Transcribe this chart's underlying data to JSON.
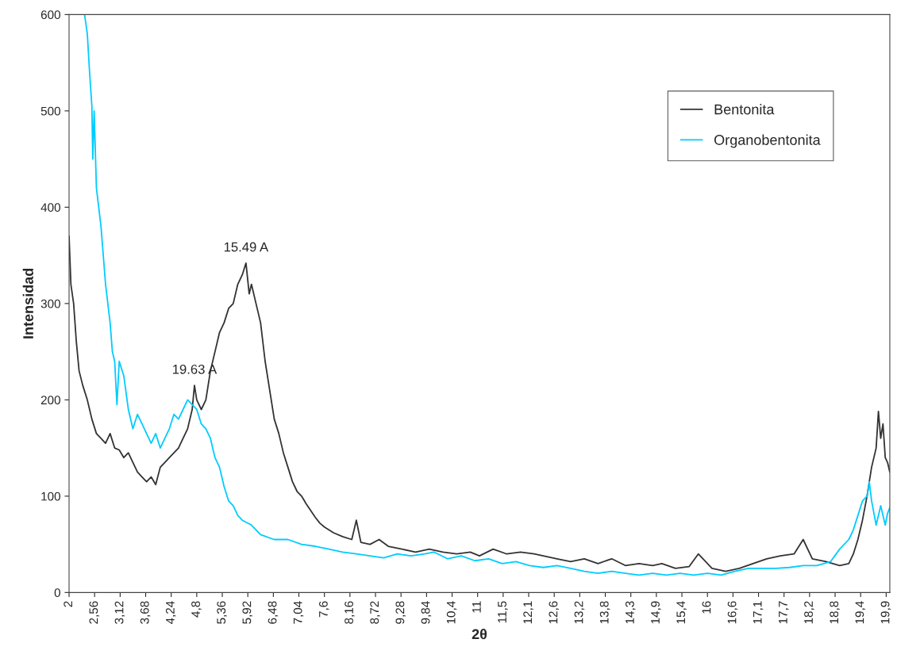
{
  "chart_data": {
    "type": "line",
    "xlabel": "2θ",
    "ylabel": "Intensidad",
    "xlim": [
      2,
      20
    ],
    "ylim": [
      0,
      600
    ],
    "yticks": [
      0,
      100,
      200,
      300,
      400,
      500,
      600
    ],
    "xticks": [
      2,
      {
        "value": 2.56,
        "label": "2,56"
      },
      {
        "value": 3.12,
        "label": "3,12"
      },
      {
        "value": 3.68,
        "label": "3,68"
      },
      {
        "value": 4.24,
        "label": "4,24"
      },
      {
        "value": 4.8,
        "label": "4,8"
      },
      {
        "value": 5.36,
        "label": "5,36"
      },
      {
        "value": 5.92,
        "label": "5,92"
      },
      {
        "value": 6.48,
        "label": "6,48"
      },
      {
        "value": 7.04,
        "label": "7,04"
      },
      {
        "value": 7.6,
        "label": "7,6"
      },
      {
        "value": 8.16,
        "label": "8,16"
      },
      {
        "value": 8.72,
        "label": "8,72"
      },
      {
        "value": 9.28,
        "label": "9,28"
      },
      {
        "value": 9.84,
        "label": "9,84"
      },
      {
        "value": 10.4,
        "label": "10,4"
      },
      {
        "value": 10.96,
        "label": "11"
      },
      {
        "value": 11.52,
        "label": "11,5"
      },
      {
        "value": 12.08,
        "label": "12,1"
      },
      {
        "value": 12.64,
        "label": "12,6"
      },
      {
        "value": 13.2,
        "label": "13,2"
      },
      {
        "value": 13.76,
        "label": "13,8"
      },
      {
        "value": 14.32,
        "label": "14,3"
      },
      {
        "value": 14.88,
        "label": "14,9"
      },
      {
        "value": 15.44,
        "label": "15,4"
      },
      {
        "value": 16.0,
        "label": "16"
      },
      {
        "value": 16.56,
        "label": "16,6"
      },
      {
        "value": 17.12,
        "label": "17,1"
      },
      {
        "value": 17.68,
        "label": "17,7"
      },
      {
        "value": 18.24,
        "label": "18,2"
      },
      {
        "value": 18.8,
        "label": "18,8"
      },
      {
        "value": 19.36,
        "label": "19,4"
      },
      {
        "value": 19.92,
        "label": "19,9"
      }
    ],
    "grid": false,
    "legend": "top right",
    "marker": "none",
    "line_style": "solid",
    "annotations": [
      {
        "text": "15.49 A",
        "x": 5.88,
        "y": 342
      },
      {
        "text": "19.63 A",
        "x": 4.75,
        "y": 215
      }
    ],
    "series": [
      {
        "name": "Bentonita",
        "color": "#333333",
        "x": [
          2.0,
          2.04,
          2.1,
          2.16,
          2.22,
          2.3,
          2.4,
          2.5,
          2.6,
          2.7,
          2.8,
          2.9,
          3.0,
          3.1,
          3.2,
          3.3,
          3.4,
          3.5,
          3.6,
          3.7,
          3.8,
          3.9,
          4.0,
          4.1,
          4.2,
          4.3,
          4.4,
          4.5,
          4.6,
          4.7,
          4.75,
          4.8,
          4.9,
          5.0,
          5.1,
          5.2,
          5.3,
          5.4,
          5.5,
          5.6,
          5.7,
          5.8,
          5.88,
          5.95,
          6.0,
          6.1,
          6.2,
          6.3,
          6.4,
          6.5,
          6.6,
          6.7,
          6.8,
          6.9,
          7.0,
          7.1,
          7.2,
          7.3,
          7.4,
          7.5,
          7.6,
          7.8,
          8.0,
          8.2,
          8.3,
          8.4,
          8.6,
          8.8,
          9.0,
          9.3,
          9.6,
          9.9,
          10.2,
          10.5,
          10.8,
          11.0,
          11.3,
          11.6,
          11.9,
          12.2,
          12.4,
          12.7,
          13.0,
          13.3,
          13.6,
          13.9,
          14.2,
          14.5,
          14.8,
          15.0,
          15.3,
          15.6,
          15.8,
          16.1,
          16.4,
          16.7,
          17.0,
          17.3,
          17.6,
          17.9,
          18.1,
          18.3,
          18.6,
          18.9,
          19.1,
          19.2,
          19.3,
          19.4,
          19.5,
          19.6,
          19.7,
          19.75,
          19.8,
          19.85,
          19.9,
          19.95,
          20.0
        ],
        "values": [
          370,
          320,
          300,
          260,
          230,
          215,
          200,
          180,
          165,
          160,
          155,
          165,
          150,
          148,
          140,
          145,
          135,
          125,
          120,
          115,
          120,
          112,
          130,
          135,
          140,
          145,
          150,
          160,
          170,
          190,
          215,
          200,
          190,
          200,
          230,
          250,
          270,
          280,
          295,
          300,
          320,
          330,
          342,
          310,
          320,
          300,
          280,
          240,
          210,
          180,
          165,
          145,
          130,
          115,
          105,
          100,
          92,
          85,
          78,
          72,
          68,
          62,
          58,
          55,
          75,
          52,
          50,
          55,
          48,
          45,
          42,
          45,
          42,
          40,
          42,
          38,
          45,
          40,
          42,
          40,
          38,
          35,
          32,
          35,
          30,
          35,
          28,
          30,
          28,
          30,
          25,
          27,
          40,
          25,
          22,
          25,
          30,
          35,
          38,
          40,
          55,
          35,
          32,
          28,
          30,
          40,
          55,
          75,
          100,
          130,
          150,
          188,
          160,
          175,
          140,
          135,
          125
        ]
      },
      {
        "name": "Organobentonita",
        "color": "#00ccff",
        "x": [
          2.34,
          2.4,
          2.45,
          2.5,
          2.52,
          2.55,
          2.6,
          2.7,
          2.8,
          2.9,
          2.95,
          3.0,
          3.05,
          3.1,
          3.2,
          3.3,
          3.4,
          3.5,
          3.6,
          3.7,
          3.8,
          3.9,
          4.0,
          4.1,
          4.2,
          4.3,
          4.4,
          4.5,
          4.6,
          4.7,
          4.8,
          4.9,
          5.0,
          5.1,
          5.2,
          5.3,
          5.4,
          5.5,
          5.6,
          5.7,
          5.8,
          6.0,
          6.2,
          6.5,
          6.8,
          7.1,
          7.4,
          7.7,
          8.0,
          8.3,
          8.6,
          8.9,
          9.2,
          9.5,
          9.8,
          10.0,
          10.3,
          10.6,
          10.9,
          11.2,
          11.5,
          11.8,
          12.1,
          12.4,
          12.7,
          13.0,
          13.3,
          13.6,
          13.9,
          14.2,
          14.5,
          14.8,
          15.1,
          15.4,
          15.7,
          16.0,
          16.3,
          16.6,
          16.9,
          17.2,
          17.5,
          17.8,
          18.1,
          18.4,
          18.7,
          18.9,
          19.1,
          19.2,
          19.3,
          19.4,
          19.5,
          19.55,
          19.6,
          19.7,
          19.8,
          19.9,
          19.95,
          20.0
        ],
        "values": [
          600,
          580,
          540,
          505,
          450,
          500,
          420,
          380,
          320,
          280,
          250,
          240,
          195,
          240,
          225,
          190,
          170,
          185,
          175,
          165,
          155,
          165,
          150,
          160,
          170,
          185,
          180,
          190,
          200,
          195,
          190,
          175,
          170,
          160,
          140,
          130,
          110,
          95,
          90,
          80,
          75,
          70,
          60,
          55,
          55,
          50,
          48,
          45,
          42,
          40,
          38,
          36,
          40,
          38,
          40,
          42,
          35,
          38,
          33,
          35,
          30,
          32,
          28,
          26,
          28,
          25,
          22,
          20,
          22,
          20,
          18,
          20,
          18,
          20,
          18,
          20,
          18,
          22,
          25,
          25,
          25,
          26,
          28,
          28,
          32,
          45,
          55,
          65,
          80,
          95,
          100,
          115,
          95,
          70,
          90,
          70,
          82,
          88
        ]
      }
    ]
  }
}
